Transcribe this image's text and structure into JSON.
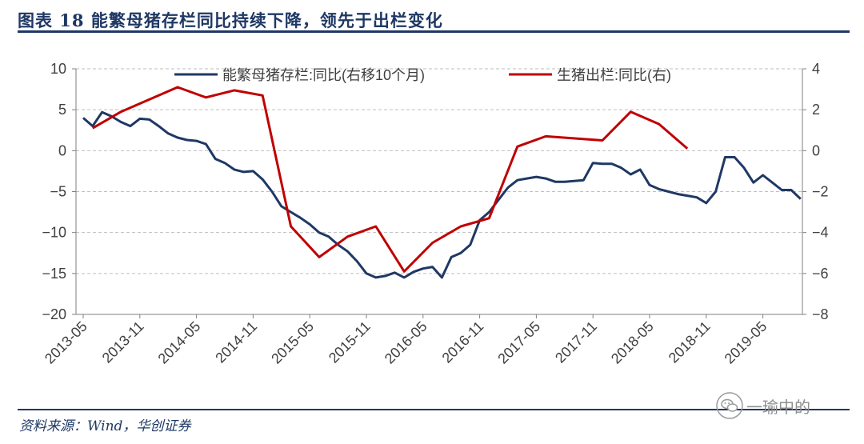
{
  "title": "图表  18    能繁母猪存栏同比持续下降，领先于出栏变化",
  "source": "资料来源：Wind，华创证券",
  "watermark": {
    "icon": "wechat-icon",
    "text": "一瑜中的"
  },
  "colors": {
    "navy": "#1f3864",
    "red": "#c00000",
    "axis": "#7f7f7f",
    "grid": "#bfbfbf",
    "text": "#404040"
  },
  "chart_data": {
    "type": "line",
    "title": "",
    "legend_position": "top",
    "grid": "horizontal-dashed",
    "y_left": {
      "ticks": [
        "10",
        "5",
        "0",
        "−5",
        "−10",
        "−15",
        "−20"
      ],
      "lim": [
        -20,
        10
      ]
    },
    "y_right": {
      "ticks": [
        "4",
        "2",
        "0",
        "−2",
        "−4",
        "−6",
        "−8"
      ],
      "lim": [
        -8,
        4
      ]
    },
    "x_ticks": [
      "2013-05",
      "2013-11",
      "2014-05",
      "2014-11",
      "2015-05",
      "2015-11",
      "2016-05",
      "2016-11",
      "2017-05",
      "2017-11",
      "2018-05",
      "2018-11",
      "2019-05"
    ],
    "x_start": "2013-05",
    "series": [
      {
        "name": "能繁母猪存栏:同比(右移10个月)",
        "axis": "left",
        "color": "#1f3864",
        "values": [
          4.0,
          3.0,
          4.7,
          4.2,
          3.5,
          3.0,
          3.9,
          3.8,
          3.0,
          2.1,
          1.6,
          1.3,
          1.2,
          0.8,
          -1.0,
          -1.5,
          -2.3,
          -2.6,
          -2.5,
          -3.5,
          -5.0,
          -6.8,
          -7.5,
          -8.2,
          -9.0,
          -10.0,
          -10.5,
          -11.5,
          -12.3,
          -13.5,
          -15.0,
          -15.5,
          -15.3,
          -14.9,
          -15.5,
          -14.8,
          -14.4,
          -14.2,
          -15.5,
          -13.0,
          -12.5,
          -11.5,
          -8.5,
          -7.5,
          -6.0,
          -4.5,
          -3.6,
          -3.4,
          -3.2,
          -3.4,
          -3.8,
          -3.8,
          -3.7,
          -3.6,
          -1.5,
          -1.6,
          -1.6,
          -2.1,
          -2.9,
          -2.3,
          -4.2,
          -4.7,
          -5.0,
          -5.3,
          -5.5,
          -5.7,
          -6.4,
          -5.0,
          -0.8,
          -0.8,
          -2.1,
          -3.9,
          -3.0,
          -3.9,
          -4.8,
          -4.8,
          -5.9
        ]
      },
      {
        "name": "生猪出栏:同比(右)",
        "axis": "right",
        "color": "#c00000",
        "points": [
          [
            "2013-06",
            1.1
          ],
          [
            "2013-09",
            1.9
          ],
          [
            "2014-03",
            3.1
          ],
          [
            "2014-06",
            2.6
          ],
          [
            "2014-09",
            2.95
          ],
          [
            "2014-12",
            2.7
          ],
          [
            "2015-03",
            -3.7
          ],
          [
            "2015-06",
            -5.2
          ],
          [
            "2015-09",
            -4.2
          ],
          [
            "2015-12",
            -3.7
          ],
          [
            "2016-03",
            -5.9
          ],
          [
            "2016-06",
            -4.5
          ],
          [
            "2016-09",
            -3.7
          ],
          [
            "2016-12",
            -3.3
          ],
          [
            "2017-03",
            0.2
          ],
          [
            "2017-06",
            0.7
          ],
          [
            "2017-12",
            0.5
          ],
          [
            "2018-03",
            1.9
          ],
          [
            "2018-06",
            1.3
          ],
          [
            "2018-09",
            0.1
          ]
        ]
      }
    ]
  }
}
